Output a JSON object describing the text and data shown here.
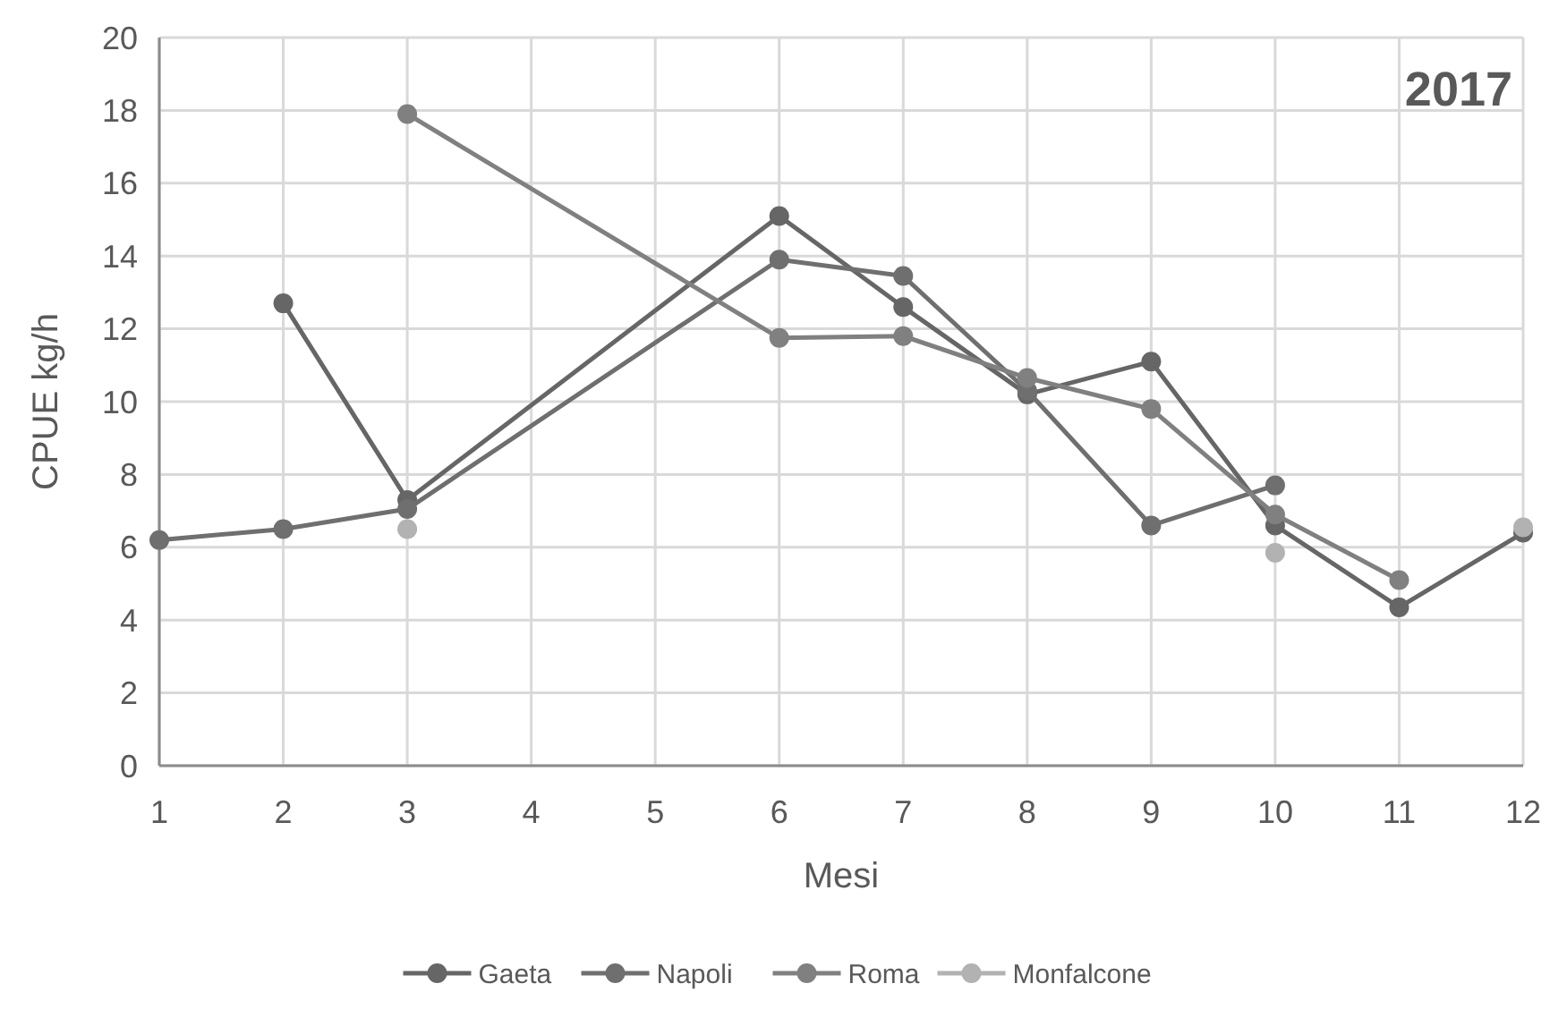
{
  "chart_data": {
    "type": "line",
    "title": "2017",
    "xlabel": "Mesi",
    "ylabel": "CPUE kg/h",
    "xlim": [
      1,
      12
    ],
    "xticks": [
      1,
      2,
      3,
      4,
      5,
      6,
      7,
      8,
      9,
      10,
      11,
      12
    ],
    "ylim": [
      0,
      20
    ],
    "yticks": [
      0,
      2,
      4,
      6,
      8,
      10,
      12,
      14,
      16,
      18,
      20
    ],
    "grid": true,
    "legend": "bottom",
    "marker": "circle",
    "line_style": "solid",
    "series": [
      {
        "name": "Gaeta",
        "color": "#666666",
        "x": [
          2,
          3,
          6,
          7,
          8,
          9,
          10,
          11,
          12
        ],
        "values": [
          12.7,
          7.3,
          15.1,
          12.6,
          10.2,
          11.1,
          6.6,
          4.35,
          6.4
        ]
      },
      {
        "name": "Napoli",
        "color": "#6f6f6f",
        "x": [
          1,
          2,
          3,
          6,
          7,
          8,
          9,
          10
        ],
        "values": [
          6.2,
          6.5,
          7.05,
          13.9,
          13.45,
          10.3,
          6.6,
          7.7
        ]
      },
      {
        "name": "Roma",
        "color": "#808080",
        "x": [
          3,
          6,
          7,
          8,
          9,
          10,
          11
        ],
        "values": [
          17.9,
          11.75,
          11.8,
          10.65,
          9.8,
          6.9,
          5.1
        ]
      },
      {
        "name": "Monfalcone",
        "type": "scatter",
        "color": "#b2b2b2",
        "x": [
          3,
          10,
          12
        ],
        "values": [
          6.5,
          5.85,
          6.55
        ]
      }
    ]
  }
}
